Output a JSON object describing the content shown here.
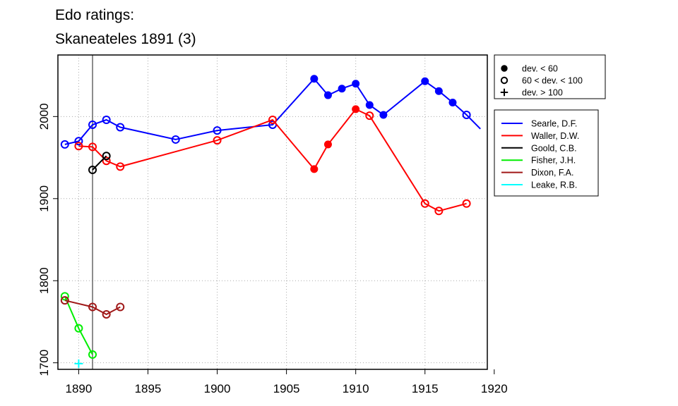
{
  "chart_data": {
    "type": "line",
    "title": "Edo ratings:",
    "subtitle": "Skaneateles 1891 (3)",
    "xlabel": "",
    "ylabel": "",
    "xlim": [
      1888.5,
      1919.5
    ],
    "ylim": [
      1692,
      2075
    ],
    "xticks": [
      1890,
      1895,
      1900,
      1905,
      1910,
      1915,
      1920
    ],
    "yticks": [
      1700,
      1800,
      1900,
      2000
    ],
    "grid": true,
    "reference_line_x": 1891,
    "marker_legend": [
      {
        "marker": "filled",
        "label": "dev. < 60"
      },
      {
        "marker": "open",
        "label": "60 < dev. < 100"
      },
      {
        "marker": "plus",
        "label": "dev. > 100"
      }
    ],
    "series": [
      {
        "name": "Searle, D.F.",
        "color": "#0000ff",
        "points": [
          {
            "x": 1889,
            "y": 1966,
            "m": "open"
          },
          {
            "x": 1890,
            "y": 1970,
            "m": "open"
          },
          {
            "x": 1891,
            "y": 1990,
            "m": "open"
          },
          {
            "x": 1892,
            "y": 1996,
            "m": "open"
          },
          {
            "x": 1893,
            "y": 1987,
            "m": "open"
          },
          {
            "x": 1897,
            "y": 1972,
            "m": "open"
          },
          {
            "x": 1900,
            "y": 1983,
            "m": "open"
          },
          {
            "x": 1904,
            "y": 1990,
            "m": "open"
          },
          {
            "x": 1907,
            "y": 2046,
            "m": "filled"
          },
          {
            "x": 1908,
            "y": 2026,
            "m": "filled"
          },
          {
            "x": 1909,
            "y": 2034,
            "m": "filled"
          },
          {
            "x": 1910,
            "y": 2040,
            "m": "filled"
          },
          {
            "x": 1911,
            "y": 2014,
            "m": "filled"
          },
          {
            "x": 1912,
            "y": 2002,
            "m": "filled"
          },
          {
            "x": 1915,
            "y": 2043,
            "m": "filled"
          },
          {
            "x": 1916,
            "y": 2031,
            "m": "filled"
          },
          {
            "x": 1917,
            "y": 2017,
            "m": "filled"
          },
          {
            "x": 1918,
            "y": 2002,
            "m": "open"
          },
          {
            "x": 1919,
            "y": 1985,
            "m": "none"
          }
        ]
      },
      {
        "name": "Waller, D.W.",
        "color": "#ff0000",
        "points": [
          {
            "x": 1890,
            "y": 1964,
            "m": "open"
          },
          {
            "x": 1891,
            "y": 1963,
            "m": "open"
          },
          {
            "x": 1892,
            "y": 1946,
            "m": "open"
          },
          {
            "x": 1893,
            "y": 1939,
            "m": "open"
          },
          {
            "x": 1900,
            "y": 1971,
            "m": "open"
          },
          {
            "x": 1904,
            "y": 1996,
            "m": "open"
          },
          {
            "x": 1907,
            "y": 1936,
            "m": "filled"
          },
          {
            "x": 1908,
            "y": 1966,
            "m": "filled"
          },
          {
            "x": 1910,
            "y": 2009,
            "m": "filled"
          },
          {
            "x": 1911,
            "y": 2001,
            "m": "open"
          },
          {
            "x": 1915,
            "y": 1894,
            "m": "open"
          },
          {
            "x": 1916,
            "y": 1885,
            "m": "open"
          },
          {
            "x": 1918,
            "y": 1894,
            "m": "open"
          }
        ]
      },
      {
        "name": "Goold, C.B.",
        "color": "#000000",
        "points": [
          {
            "x": 1891,
            "y": 1935,
            "m": "open"
          },
          {
            "x": 1892,
            "y": 1952,
            "m": "open"
          }
        ]
      },
      {
        "name": "Fisher, J.H.",
        "color": "#00ee00",
        "points": [
          {
            "x": 1889,
            "y": 1781,
            "m": "open"
          },
          {
            "x": 1890,
            "y": 1742,
            "m": "open"
          },
          {
            "x": 1891,
            "y": 1710,
            "m": "open"
          }
        ]
      },
      {
        "name": "Dixon, F.A.",
        "color": "#a01818",
        "points": [
          {
            "x": 1889,
            "y": 1776,
            "m": "open"
          },
          {
            "x": 1891,
            "y": 1768,
            "m": "open"
          },
          {
            "x": 1892,
            "y": 1759,
            "m": "open"
          },
          {
            "x": 1893,
            "y": 1768,
            "m": "open"
          }
        ]
      },
      {
        "name": "Leake, R.B.",
        "color": "#00ffff",
        "points": [
          {
            "x": 1890,
            "y": 1699,
            "m": "plus"
          }
        ]
      }
    ]
  }
}
